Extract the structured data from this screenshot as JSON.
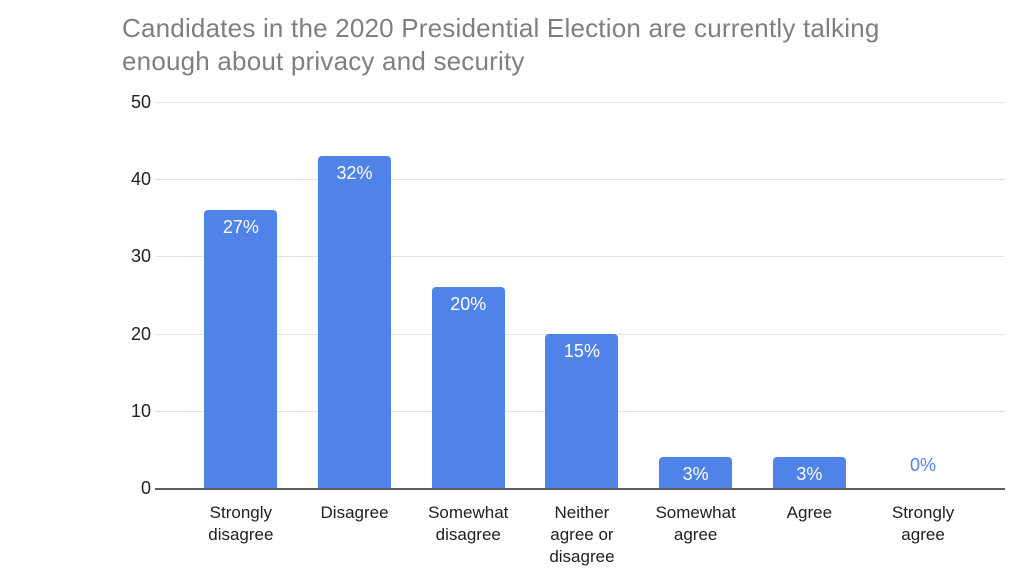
{
  "chart_data": {
    "type": "bar",
    "title": "Candidates in the 2020 Presidential Election are currently talking enough about privacy and security",
    "categories": [
      "Strongly disagree",
      "Disagree",
      "Somewhat disagree",
      "Neither agree or disagree",
      "Somewhat agree",
      "Agree",
      "Strongly agree"
    ],
    "values": [
      36,
      43,
      26,
      20,
      4,
      4,
      0
    ],
    "bar_labels": [
      "27%",
      "32%",
      "20%",
      "15%",
      "3%",
      "3%",
      "0%"
    ],
    "xlabel": "",
    "ylabel": "",
    "ylim": [
      0,
      50
    ],
    "yticks": [
      0,
      10,
      20,
      30,
      40,
      50
    ],
    "grid": true,
    "legend": "none",
    "colors": {
      "bar": "#5083e8",
      "bar_label": "#ffffff",
      "zero_label": "#5083e8",
      "title": "#7f7f7f",
      "axis_text": "#222222",
      "x_axis_text": "#212121",
      "gridline": "#e3e3e3",
      "baseline": "#5f5f5f",
      "background": "#ffffff"
    }
  }
}
